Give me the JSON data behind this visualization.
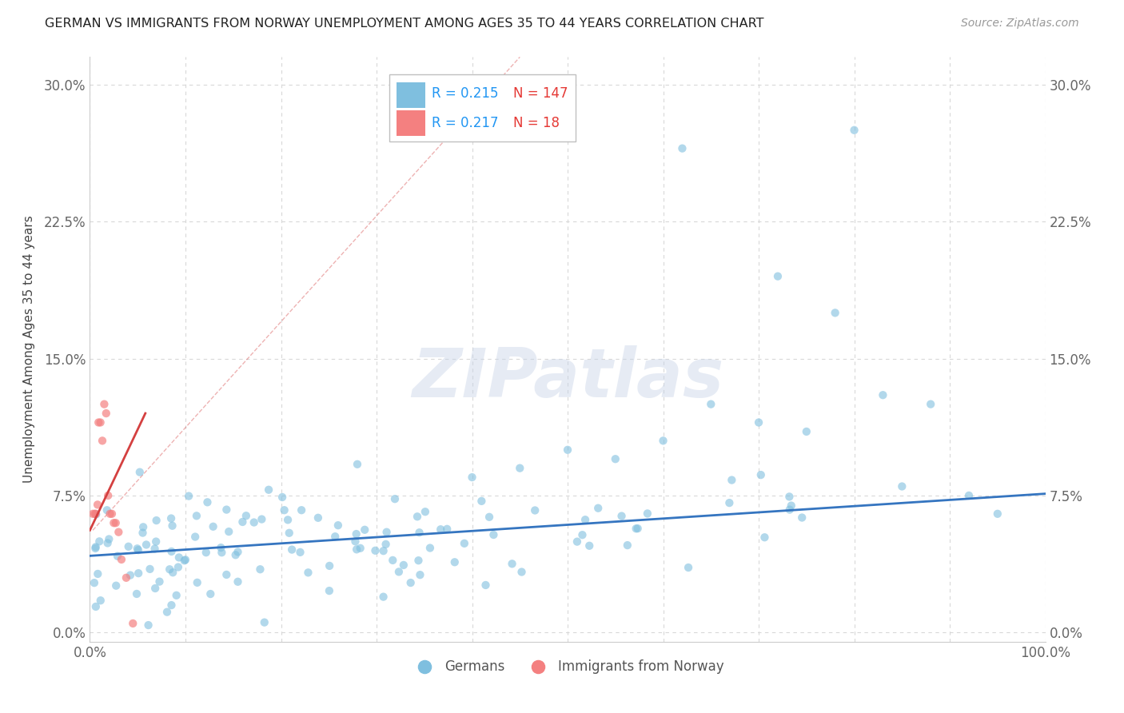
{
  "title": "GERMAN VS IMMIGRANTS FROM NORWAY UNEMPLOYMENT AMONG AGES 35 TO 44 YEARS CORRELATION CHART",
  "source": "Source: ZipAtlas.com",
  "ylabel": "Unemployment Among Ages 35 to 44 years",
  "xlim": [
    0,
    1.0
  ],
  "ylim": [
    -0.005,
    0.315
  ],
  "yticks": [
    0.0,
    0.075,
    0.15,
    0.225,
    0.3
  ],
  "ytick_labels": [
    "0.0%",
    "7.5%",
    "15.0%",
    "22.5%",
    "30.0%"
  ],
  "xticks": [
    0.0,
    1.0
  ],
  "xtick_labels": [
    "0.0%",
    "100.0%"
  ],
  "watermark": "ZIPatlas",
  "legend_german_R": "0.215",
  "legend_german_N": "147",
  "legend_norway_R": "0.217",
  "legend_norway_N": "18",
  "german_color": "#7fbfdf",
  "norway_color": "#f48080",
  "trend_german_color": "#3575c0",
  "trend_norway_color": "#d44040",
  "legend_color_R": "#2196F3",
  "legend_color_N": "#e53935",
  "background_color": "#ffffff",
  "grid_color": "#d8d8d8",
  "german_trend_x0": 0.0,
  "german_trend_y0": 0.042,
  "german_trend_x1": 1.0,
  "german_trend_y1": 0.076,
  "norway_trend_x0": 0.0,
  "norway_trend_y0": 0.056,
  "norway_trend_x1": 0.058,
  "norway_trend_y1": 0.12
}
